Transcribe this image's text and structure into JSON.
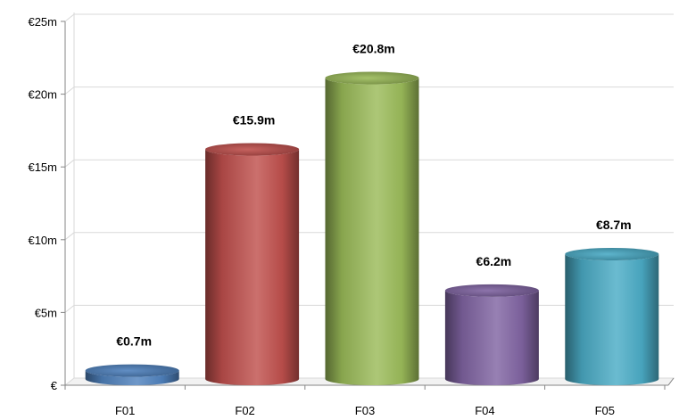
{
  "chart_data": {
    "type": "bar",
    "title": "",
    "xlabel": "",
    "ylabel": "",
    "categories": [
      "F01",
      "F02",
      "F03",
      "F04",
      "F05"
    ],
    "values": [
      0.7,
      15.9,
      20.8,
      6.2,
      8.7
    ],
    "data_labels": [
      "€0.7m",
      "€15.9m",
      "€20.8m",
      "€6.2m",
      "€8.7m"
    ],
    "ylim": [
      0,
      25
    ],
    "yticks": [
      0,
      5,
      10,
      15,
      20,
      25
    ],
    "ytick_labels": [
      "€",
      "€5m",
      "€10m",
      "€15m",
      "€20m",
      "€25m"
    ],
    "grid": true,
    "legend": "none",
    "bar_style": "3d-cylinder",
    "colors": [
      "#4f81bd",
      "#c0504d",
      "#9bbb59",
      "#8064a2",
      "#4bacc6"
    ]
  }
}
